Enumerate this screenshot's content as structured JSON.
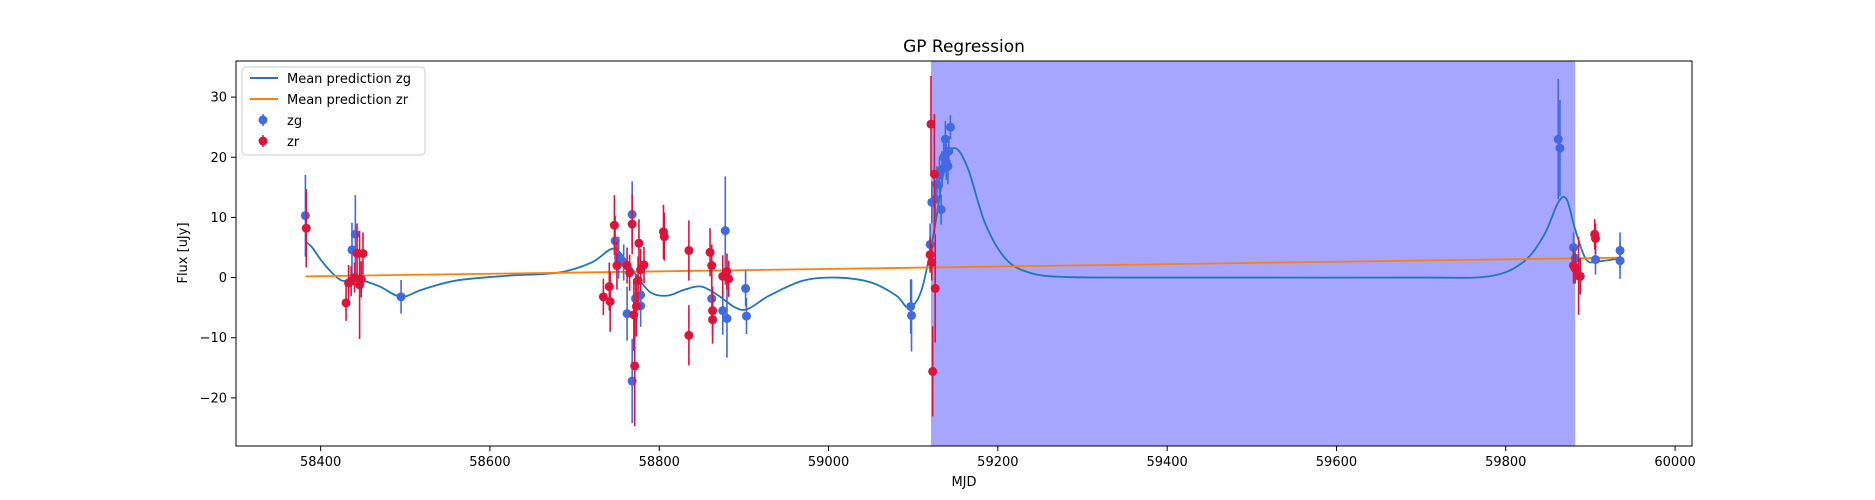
{
  "chart_data": {
    "type": "scatter",
    "title": "GP Regression",
    "xlabel": "MJD",
    "ylabel": "Flux [uJy]",
    "xlim": [
      58300,
      60020
    ],
    "ylim": [
      -28,
      36
    ],
    "xticks": [
      58400,
      58600,
      58800,
      59000,
      59200,
      59400,
      59600,
      59800,
      60000
    ],
    "yticks": [
      -20,
      -10,
      0,
      10,
      20,
      30
    ],
    "grid": false,
    "legend_position": "top-left",
    "shaded_region": {
      "x0": 59121,
      "x1": 59882,
      "color": "#a6a6ff"
    },
    "series": [
      {
        "name": "Mean prediction zg",
        "kind": "line",
        "color": "#1f77b4",
        "x": [
          58382,
          58390,
          58400,
          58412,
          58425,
          58438,
          58450,
          58470,
          58495,
          58520,
          58560,
          58620,
          58680,
          58720,
          58745,
          58760,
          58775,
          58790,
          58810,
          58830,
          58850,
          58870,
          58890,
          58905,
          58930,
          58970,
          59010,
          59050,
          59080,
          59095,
          59110,
          59125,
          59138,
          59150,
          59165,
          59185,
          59210,
          59240,
          59280,
          59350,
          59500,
          59700,
          59780,
          59820,
          59845,
          59862,
          59872,
          59882,
          59895,
          59910,
          59935
        ],
        "y": [
          6,
          5,
          3,
          1,
          -0.5,
          -0.3,
          -0.5,
          -1.5,
          -3.2,
          -2,
          -0.5,
          0.3,
          0.8,
          2.5,
          4.8,
          3,
          0,
          -2.5,
          -3,
          -2,
          -1.5,
          -3,
          -5,
          -5.2,
          -3,
          -0.5,
          0,
          -0.8,
          -3,
          -5,
          -2,
          8,
          19,
          21.5,
          18,
          9,
          3,
          0.7,
          0.1,
          0,
          0,
          0,
          0.2,
          2.5,
          7,
          12.5,
          13,
          8,
          3,
          2.7,
          3.2
        ]
      },
      {
        "name": "Mean prediction zr",
        "kind": "line",
        "color": "#ff7f0e",
        "x": [
          58382,
          59935
        ],
        "y": [
          0.2,
          3.3
        ]
      },
      {
        "name": "zg",
        "kind": "errorbar",
        "color": "#4169e1",
        "points": [
          {
            "x": 58382,
            "y": 10.3,
            "err": 6.8
          },
          {
            "x": 58437,
            "y": 4.6,
            "err": 4.5
          },
          {
            "x": 58441,
            "y": 7.2,
            "err": 6.5
          },
          {
            "x": 58495,
            "y": -3.2,
            "err": 2.8
          },
          {
            "x": 58748,
            "y": 6.1,
            "err": 4.2
          },
          {
            "x": 58752,
            "y": 3.3,
            "err": 3.5
          },
          {
            "x": 58758,
            "y": 2.5,
            "err": 3.0
          },
          {
            "x": 58762,
            "y": -6.0,
            "err": 4.5
          },
          {
            "x": 58768,
            "y": 10.5,
            "err": 5.5
          },
          {
            "x": 58768,
            "y": -17.2,
            "err": 7.0
          },
          {
            "x": 58772,
            "y": -3.5,
            "err": 4.0
          },
          {
            "x": 58778,
            "y": -4.7,
            "err": 3.5
          },
          {
            "x": 58778,
            "y": -2.9,
            "err": 3.0
          },
          {
            "x": 58862,
            "y": -3.5,
            "err": 4.0
          },
          {
            "x": 58875,
            "y": -5.5,
            "err": 4.0
          },
          {
            "x": 58878,
            "y": 7.8,
            "err": 9.0
          },
          {
            "x": 58880,
            "y": -6.8,
            "err": 6.5
          },
          {
            "x": 58902,
            "y": -1.8,
            "err": 3.0
          },
          {
            "x": 58903,
            "y": -6.4,
            "err": 3.0
          },
          {
            "x": 59097,
            "y": -4.8,
            "err": 4.5
          },
          {
            "x": 59098,
            "y": -6.3,
            "err": 6.0
          },
          {
            "x": 59120,
            "y": 5.5,
            "err": 3.5
          },
          {
            "x": 59122,
            "y": 12.5,
            "err": 3.5
          },
          {
            "x": 59126,
            "y": 13.0,
            "err": 3.0
          },
          {
            "x": 59128,
            "y": 15.5,
            "err": 3.0
          },
          {
            "x": 59131,
            "y": 17.0,
            "err": 3.0
          },
          {
            "x": 59133,
            "y": 11.3,
            "err": 2.5
          },
          {
            "x": 59134,
            "y": 18.0,
            "err": 3.0
          },
          {
            "x": 59136,
            "y": 20.0,
            "err": 3.0
          },
          {
            "x": 59138,
            "y": 23.0,
            "err": 3.0
          },
          {
            "x": 59139,
            "y": 19.2,
            "err": 3.0
          },
          {
            "x": 59141,
            "y": 18.5,
            "err": 3.0
          },
          {
            "x": 59142,
            "y": 21.0,
            "err": 2.5
          },
          {
            "x": 59144,
            "y": 25.0,
            "err": 2.0
          },
          {
            "x": 59862,
            "y": 23.0,
            "err": 10.0
          },
          {
            "x": 59864,
            "y": 21.5,
            "err": 8.0
          },
          {
            "x": 59880,
            "y": 5.0,
            "err": 2.5
          },
          {
            "x": 59882,
            "y": 3.2,
            "err": 2.0
          },
          {
            "x": 59906,
            "y": 3.0,
            "err": 2.5
          },
          {
            "x": 59935,
            "y": 4.5,
            "err": 3.0
          },
          {
            "x": 59935,
            "y": 2.8,
            "err": 3.0
          }
        ]
      },
      {
        "name": "zr",
        "kind": "errorbar",
        "color": "#dc143c",
        "points": [
          {
            "x": 58383,
            "y": 8.2,
            "err": 6.5
          },
          {
            "x": 58430,
            "y": -4.2,
            "err": 3.0
          },
          {
            "x": 58433,
            "y": -0.9,
            "err": 3.0
          },
          {
            "x": 58436,
            "y": -0.6,
            "err": 2.5
          },
          {
            "x": 58440,
            "y": 0.0,
            "err": 2.5
          },
          {
            "x": 58443,
            "y": 4.0,
            "err": 5.0
          },
          {
            "x": 58446,
            "y": -1.2,
            "err": 9.0
          },
          {
            "x": 58448,
            "y": -0.3,
            "err": 3.0
          },
          {
            "x": 58450,
            "y": 4.0,
            "err": 3.5
          },
          {
            "x": 58734,
            "y": -3.2,
            "err": 3.0
          },
          {
            "x": 58741,
            "y": -1.5,
            "err": 4.0
          },
          {
            "x": 58742,
            "y": -4.0,
            "err": 5.0
          },
          {
            "x": 58747,
            "y": 8.7,
            "err": 5.0
          },
          {
            "x": 58750,
            "y": 2.0,
            "err": 4.0
          },
          {
            "x": 58762,
            "y": 2.0,
            "err": 3.0
          },
          {
            "x": 58765,
            "y": 0.8,
            "err": 3.0
          },
          {
            "x": 58768,
            "y": 8.9,
            "err": 5.0
          },
          {
            "x": 58770,
            "y": -6.2,
            "err": 6.0
          },
          {
            "x": 58771,
            "y": -14.7,
            "err": 10.0
          },
          {
            "x": 58773,
            "y": -4.8,
            "err": 5.0
          },
          {
            "x": 58775,
            "y": -0.5,
            "err": 4.0
          },
          {
            "x": 58776,
            "y": 5.7,
            "err": 4.0
          },
          {
            "x": 58778,
            "y": 1.3,
            "err": 3.5
          },
          {
            "x": 58782,
            "y": 2.1,
            "err": 3.0
          },
          {
            "x": 58805,
            "y": 7.6,
            "err": 4.5
          },
          {
            "x": 58806,
            "y": 6.8,
            "err": 4.0
          },
          {
            "x": 58835,
            "y": 4.5,
            "err": 5.0
          },
          {
            "x": 58835,
            "y": -9.6,
            "err": 5.0
          },
          {
            "x": 58860,
            "y": 4.2,
            "err": 4.0
          },
          {
            "x": 58862,
            "y": 2.0,
            "err": 3.5
          },
          {
            "x": 58863,
            "y": -5.5,
            "err": 4.0
          },
          {
            "x": 58863,
            "y": -7.0,
            "err": 4.0
          },
          {
            "x": 58875,
            "y": 0.2,
            "err": 3.5
          },
          {
            "x": 58880,
            "y": 1.0,
            "err": 3.0
          },
          {
            "x": 58882,
            "y": -0.2,
            "err": 3.0
          },
          {
            "x": 59120,
            "y": 3.8,
            "err": 3.0
          },
          {
            "x": 59121,
            "y": 25.5,
            "err": 8.0
          },
          {
            "x": 59122,
            "y": 2.5,
            "err": 3.0
          },
          {
            "x": 59123,
            "y": -15.6,
            "err": 7.5
          },
          {
            "x": 59125,
            "y": 17.2,
            "err": 10.0
          },
          {
            "x": 59126,
            "y": -1.8,
            "err": 9.0
          },
          {
            "x": 59880,
            "y": 2.0,
            "err": 3.0
          },
          {
            "x": 59882,
            "y": 1.5,
            "err": 2.5
          },
          {
            "x": 59886,
            "y": 0.3,
            "err": 6.5
          },
          {
            "x": 59888,
            "y": 0.2,
            "err": 3.0
          },
          {
            "x": 59905,
            "y": 7.2,
            "err": 2.5
          },
          {
            "x": 59906,
            "y": 6.5,
            "err": 2.5
          }
        ]
      }
    ]
  }
}
